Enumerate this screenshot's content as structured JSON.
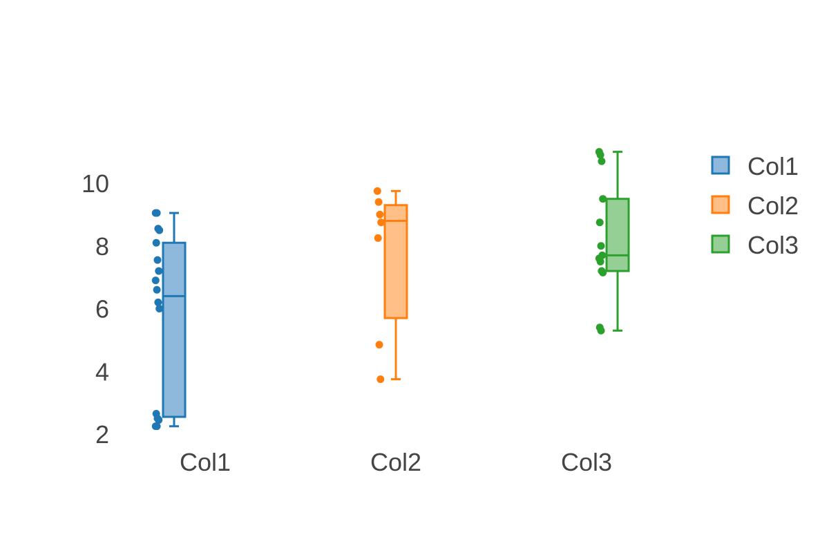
{
  "chart_data": {
    "type": "box",
    "title": "",
    "xlabel": "",
    "ylabel": "",
    "ylim": [
      2,
      11
    ],
    "yticks": [
      "2",
      "4",
      "6",
      "8",
      "10"
    ],
    "categories": [
      "Col1",
      "Col2",
      "Col3"
    ],
    "grid": false,
    "legend_position": "top-right",
    "series": [
      {
        "name": "Col1",
        "color": "#1f77b4",
        "fill": "#8fb9dc",
        "whisker_low": 2.25,
        "q1": 2.55,
        "median": 6.4,
        "q3": 8.1,
        "whisker_high": 9.05,
        "points": [
          9.05,
          9.05,
          8.55,
          8.5,
          8.1,
          7.55,
          7.2,
          6.9,
          6.6,
          6.2,
          6.0,
          2.65,
          2.5,
          2.45,
          2.25,
          2.25
        ]
      },
      {
        "name": "Col2",
        "color": "#ff7f0e",
        "fill": "#ffbf86",
        "whisker_low": 3.75,
        "q1": 5.7,
        "median": 8.8,
        "q3": 9.3,
        "whisker_high": 9.75,
        "points": [
          9.75,
          9.4,
          9.0,
          8.75,
          8.25,
          4.85,
          3.75
        ]
      },
      {
        "name": "Col3",
        "color": "#2ca02c",
        "fill": "#95cf95",
        "whisker_low": 5.3,
        "q1": 7.2,
        "median": 7.7,
        "q3": 9.5,
        "whisker_high": 11.0,
        "points": [
          11.0,
          10.9,
          10.7,
          9.5,
          8.75,
          8.0,
          7.7,
          7.6,
          7.5,
          7.2,
          7.15,
          5.4,
          5.3
        ]
      }
    ]
  }
}
